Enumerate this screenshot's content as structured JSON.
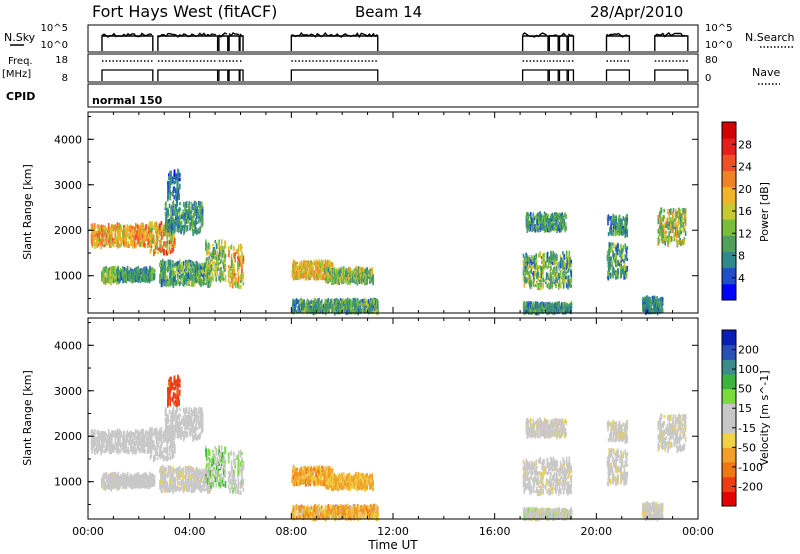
{
  "chart_data": {
    "type": "range-time-plot",
    "header": {
      "station": "Fort Hays West (fitACF)",
      "beam": "Beam 14",
      "date": "28/Apr/2010"
    },
    "strip_labels": {
      "nsky": "N.Sky",
      "nsearch": "N.Search",
      "freq_line1": "Freq.",
      "freq_line2": "[MHz]",
      "nave": "Nave",
      "cpid": "CPID",
      "cpid_value": "normal 150"
    },
    "noise_axis_labels": [
      "10^5",
      "10^0"
    ],
    "freq_axis_labels": [
      "18",
      "8"
    ],
    "nave_axis_labels": [
      "80",
      "0"
    ],
    "operating_intervals_hours": [
      [
        0.55,
        2.55
      ],
      [
        2.75,
        5.1
      ],
      [
        5.15,
        5.5
      ],
      [
        5.55,
        5.95
      ],
      [
        5.98,
        6.1
      ],
      [
        8.0,
        11.4
      ],
      [
        17.1,
        18.1
      ],
      [
        18.15,
        18.5
      ],
      [
        18.55,
        18.85
      ],
      [
        18.9,
        19.1
      ],
      [
        20.4,
        21.3
      ],
      [
        22.3,
        23.6
      ]
    ],
    "x_axis": {
      "label": "Time UT",
      "ticks": [
        "00:00",
        "04:00",
        "08:00",
        "12:00",
        "16:00",
        "20:00",
        "00:00"
      ],
      "range_hours": [
        0,
        24
      ]
    },
    "y_axis": {
      "label": "Slant Range [km]",
      "ticks": [
        "1000",
        "2000",
        "3000",
        "4000"
      ],
      "range_km": [
        180,
        4600
      ]
    },
    "power_colorbar": {
      "label": "Power [dB]",
      "ticks": [
        "4",
        "8",
        "12",
        "16",
        "20",
        "24",
        "28"
      ],
      "colors": [
        "#0000ff",
        "#1e4ec8",
        "#2e8a8a",
        "#4ea05a",
        "#78be3c",
        "#c8c832",
        "#f0b428",
        "#f08228",
        "#f05028",
        "#e61e1e",
        "#d20000"
      ]
    },
    "velocity_colorbar": {
      "label": "Velocity [m s^-1]",
      "ticks": [
        "-200",
        "-100",
        "-50",
        "-15",
        "15",
        "50",
        "100",
        "200"
      ],
      "colors": [
        "#e60000",
        "#f03c14",
        "#f07814",
        "#f0a028",
        "#f0d246",
        "#c8c8c8",
        "#c8c8c8",
        "#78dc3c",
        "#3cb43c",
        "#3c8c8c",
        "#2850b4",
        "#0a1eb4"
      ]
    },
    "echo_regions": [
      {
        "t": [
          0.1,
          2.5
        ],
        "r": [
          1650,
          2100
        ],
        "p": [
          14,
          24
        ],
        "v": [
          -10,
          10
        ]
      },
      {
        "t": [
          0.5,
          1.2
        ],
        "r": [
          850,
          1150
        ],
        "p": [
          10,
          18
        ],
        "v": [
          -20,
          20
        ]
      },
      {
        "t": [
          1.1,
          2.6
        ],
        "r": [
          900,
          1150
        ],
        "p": [
          6,
          14
        ],
        "v": [
          -10,
          30
        ]
      },
      {
        "t": [
          2.4,
          3.4
        ],
        "r": [
          1500,
          2150
        ],
        "p": [
          12,
          26
        ],
        "v": [
          -10,
          30
        ]
      },
      {
        "t": [
          3.0,
          4.5
        ],
        "r": [
          1950,
          2600
        ],
        "p": [
          6,
          14
        ],
        "v": [
          -10,
          20
        ]
      },
      {
        "t": [
          2.8,
          4.8
        ],
        "r": [
          800,
          1300
        ],
        "p": [
          6,
          16
        ],
        "v": [
          -20,
          20
        ]
      },
      {
        "t": [
          3.1,
          3.6
        ],
        "r": [
          2700,
          3300
        ],
        "p": [
          4,
          12
        ],
        "v": [
          -200,
          -80
        ]
      },
      {
        "t": [
          4.6,
          5.4
        ],
        "r": [
          900,
          1750
        ],
        "p": [
          8,
          20
        ],
        "v": [
          0,
          60
        ]
      },
      {
        "t": [
          5.5,
          6.1
        ],
        "r": [
          750,
          1650
        ],
        "p": [
          12,
          24
        ],
        "v": [
          -10,
          40
        ]
      },
      {
        "t": [
          8.0,
          9.6
        ],
        "r": [
          950,
          1300
        ],
        "p": [
          14,
          22
        ],
        "v": [
          -60,
          -15
        ]
      },
      {
        "t": [
          9.3,
          11.2
        ],
        "r": [
          850,
          1150
        ],
        "p": [
          8,
          20
        ],
        "v": [
          -50,
          -15
        ]
      },
      {
        "t": [
          8.0,
          11.4
        ],
        "r": [
          200,
          450
        ],
        "p": [
          6,
          16
        ],
        "v": [
          -60,
          -10
        ]
      },
      {
        "t": [
          17.1,
          19.0
        ],
        "r": [
          750,
          1500
        ],
        "p": [
          6,
          18
        ],
        "v": [
          -20,
          20
        ]
      },
      {
        "t": [
          17.2,
          18.8
        ],
        "r": [
          2000,
          2350
        ],
        "p": [
          6,
          14
        ],
        "v": [
          -20,
          20
        ]
      },
      {
        "t": [
          17.1,
          19.0
        ],
        "r": [
          200,
          380
        ],
        "p": [
          6,
          14
        ],
        "v": [
          -20,
          40
        ]
      },
      {
        "t": [
          20.4,
          21.2
        ],
        "r": [
          950,
          1700
        ],
        "p": [
          6,
          16
        ],
        "v": [
          -20,
          20
        ]
      },
      {
        "t": [
          20.4,
          21.2
        ],
        "r": [
          1900,
          2300
        ],
        "p": [
          6,
          14
        ],
        "v": [
          -20,
          20
        ]
      },
      {
        "t": [
          22.4,
          23.5
        ],
        "r": [
          1700,
          2450
        ],
        "p": [
          8,
          22
        ],
        "v": [
          -20,
          20
        ]
      },
      {
        "t": [
          21.8,
          22.6
        ],
        "r": [
          200,
          500
        ],
        "p": [
          6,
          12
        ],
        "v": [
          -20,
          30
        ]
      }
    ]
  }
}
